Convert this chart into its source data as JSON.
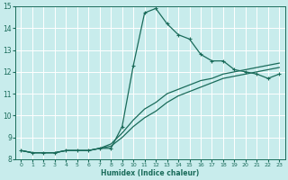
{
  "xlabel": "Humidex (Indice chaleur)",
  "bg_color": "#c8ecec",
  "grid_color": "#ffffff",
  "line_color": "#1a6b5a",
  "xlim": [
    -0.5,
    23.5
  ],
  "ylim": [
    8,
    15
  ],
  "xticks": [
    0,
    1,
    2,
    3,
    4,
    5,
    6,
    7,
    8,
    9,
    10,
    11,
    12,
    13,
    14,
    15,
    16,
    17,
    18,
    19,
    20,
    21,
    22,
    23
  ],
  "yticks": [
    8,
    9,
    10,
    11,
    12,
    13,
    14,
    15
  ],
  "line1_x": [
    0,
    1,
    2,
    3,
    4,
    5,
    6,
    7,
    8,
    9,
    10,
    11,
    12,
    13,
    14,
    15,
    16,
    17,
    18,
    19,
    20,
    21,
    22,
    23
  ],
  "line1_y": [
    8.4,
    8.3,
    8.3,
    8.3,
    8.4,
    8.4,
    8.4,
    8.5,
    8.5,
    9.5,
    12.3,
    14.7,
    14.9,
    14.2,
    13.7,
    13.5,
    12.8,
    12.5,
    12.5,
    12.1,
    12.0,
    11.9,
    11.7,
    11.9
  ],
  "line2_x": [
    0,
    1,
    2,
    3,
    4,
    5,
    6,
    7,
    8,
    9,
    10,
    11,
    12,
    13,
    14,
    15,
    16,
    17,
    18,
    19,
    20,
    21,
    22,
    23
  ],
  "line2_y": [
    8.4,
    8.3,
    8.3,
    8.3,
    8.4,
    8.4,
    8.4,
    8.5,
    8.6,
    9.0,
    9.5,
    9.9,
    10.2,
    10.6,
    10.9,
    11.1,
    11.3,
    11.5,
    11.7,
    11.8,
    11.9,
    12.0,
    12.1,
    12.2
  ],
  "line3_x": [
    0,
    1,
    2,
    3,
    4,
    5,
    6,
    7,
    8,
    9,
    10,
    11,
    12,
    13,
    14,
    15,
    16,
    17,
    18,
    19,
    20,
    21,
    22,
    23
  ],
  "line3_y": [
    8.4,
    8.3,
    8.3,
    8.3,
    8.4,
    8.4,
    8.4,
    8.5,
    8.7,
    9.2,
    9.8,
    10.3,
    10.6,
    11.0,
    11.2,
    11.4,
    11.6,
    11.7,
    11.9,
    12.0,
    12.1,
    12.2,
    12.3,
    12.4
  ]
}
